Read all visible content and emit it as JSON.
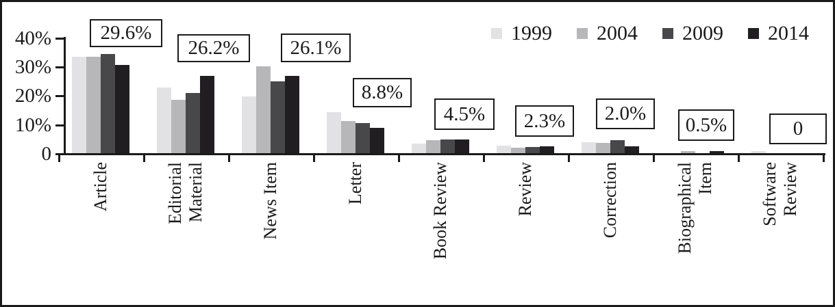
{
  "chart_data": {
    "type": "bar",
    "title": "",
    "xlabel": "",
    "ylabel": "",
    "ylim": [
      0,
      40
    ],
    "grid": false,
    "legend_position": "top-right",
    "yticks": [
      {
        "value": 0,
        "label": "0"
      },
      {
        "value": 10,
        "label": "10%"
      },
      {
        "value": 20,
        "label": "20%"
      },
      {
        "value": 30,
        "label": "30%"
      },
      {
        "value": 40,
        "label": "40%"
      }
    ],
    "categories": [
      "Article",
      "Editorial Material",
      "News Item",
      "Letter",
      "Book Review",
      "Review",
      "Correction",
      "Biographical Item",
      "Software Review"
    ],
    "category_label_lines": [
      [
        "Article"
      ],
      [
        "Editorial",
        "Material"
      ],
      [
        "News Item"
      ],
      [
        "Letter"
      ],
      [
        "Book Review"
      ],
      [
        "Review"
      ],
      [
        "Correction"
      ],
      [
        "Biographical",
        "Item"
      ],
      [
        "Software",
        "Review"
      ]
    ],
    "series": [
      {
        "name": "1999",
        "color": "#e2e2e4",
        "values": [
          33.4,
          22.6,
          19.7,
          14.1,
          3.4,
          2.6,
          3.9,
          0,
          0.6
        ]
      },
      {
        "name": "2004",
        "color": "#b7b7b9",
        "values": [
          33.3,
          18.5,
          30.0,
          11.2,
          4.4,
          1.9,
          3.5,
          0.7,
          0
        ]
      },
      {
        "name": "2009",
        "color": "#48484a",
        "values": [
          34.2,
          20.7,
          24.9,
          10.3,
          4.7,
          2.1,
          4.6,
          0,
          0
        ]
      },
      {
        "name": "2014",
        "color": "#211e21",
        "values": [
          30.5,
          26.7,
          26.8,
          8.8,
          4.8,
          2.3,
          2.3,
          0.8,
          0
        ]
      }
    ],
    "annotations": [
      {
        "category": "Article",
        "label": "29.6%"
      },
      {
        "category": "Editorial Material",
        "label": "26.2%"
      },
      {
        "category": "News Item",
        "label": "26.1%"
      },
      {
        "category": "Letter",
        "label": "8.8%"
      },
      {
        "category": "Book Review",
        "label": "4.5%"
      },
      {
        "category": "Review",
        "label": "2.3%"
      },
      {
        "category": "Correction",
        "label": "2.0%"
      },
      {
        "category": "Biographical Item",
        "label": "0.5%"
      },
      {
        "category": "Software Review",
        "label": "0"
      }
    ]
  },
  "colors": {
    "axis": "#1a1a1a",
    "text": "#1a1a1a",
    "background": "#ffffff"
  }
}
